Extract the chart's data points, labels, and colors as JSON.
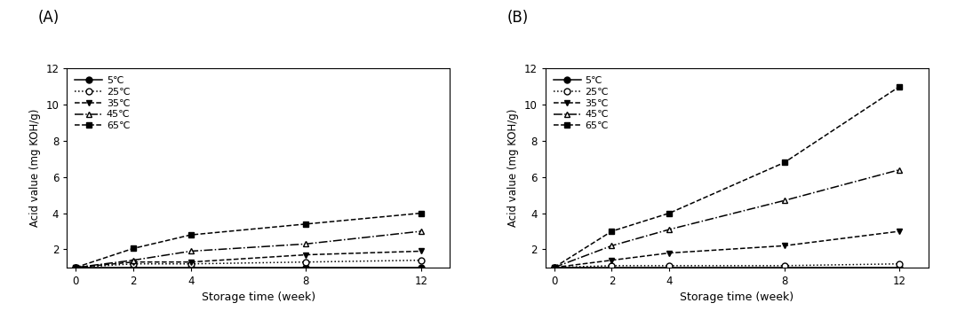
{
  "x": [
    0,
    2,
    4,
    8,
    12
  ],
  "panel_A": {
    "panel_label": "(A)",
    "series": [
      {
        "label": "5℃",
        "values": [
          1.0,
          1.0,
          1.0,
          1.0,
          1.0
        ],
        "linestyle": "-",
        "marker": "o",
        "markerfacecolor": "black",
        "color": "black"
      },
      {
        "label": "25℃",
        "values": [
          1.0,
          1.2,
          1.2,
          1.3,
          1.4
        ],
        "linestyle": ":",
        "marker": "o",
        "markerfacecolor": "white",
        "color": "black"
      },
      {
        "label": "35℃",
        "values": [
          1.0,
          1.3,
          1.3,
          1.7,
          1.9
        ],
        "linestyle": "--",
        "marker": "v",
        "markerfacecolor": "black",
        "color": "black"
      },
      {
        "label": "45℃",
        "values": [
          1.0,
          1.4,
          1.9,
          2.3,
          3.0
        ],
        "linestyle": "-.",
        "marker": "^",
        "markerfacecolor": "white",
        "color": "black"
      },
      {
        "label": "65℃",
        "values": [
          1.0,
          2.05,
          2.8,
          3.4,
          4.0
        ],
        "linestyle": "--",
        "marker": "s",
        "markerfacecolor": "black",
        "color": "black"
      }
    ],
    "ylabel": "Acid value (mg KOH/g)",
    "xlabel": "Storage time (week)",
    "ylim": [
      1,
      12
    ],
    "yticks": [
      2,
      4,
      6,
      8,
      10,
      12
    ],
    "xlim": [
      -0.3,
      13
    ],
    "xticks": [
      0,
      2,
      4,
      8,
      12
    ]
  },
  "panel_B": {
    "panel_label": "(B)",
    "series": [
      {
        "label": "5℃",
        "values": [
          1.0,
          1.0,
          1.0,
          1.0,
          1.0
        ],
        "linestyle": "-",
        "marker": "o",
        "markerfacecolor": "black",
        "color": "black"
      },
      {
        "label": "25℃",
        "values": [
          1.0,
          1.1,
          1.1,
          1.1,
          1.2
        ],
        "linestyle": ":",
        "marker": "o",
        "markerfacecolor": "white",
        "color": "black"
      },
      {
        "label": "35℃",
        "values": [
          1.0,
          1.4,
          1.8,
          2.2,
          3.0
        ],
        "linestyle": "--",
        "marker": "v",
        "markerfacecolor": "black",
        "color": "black"
      },
      {
        "label": "45℃",
        "values": [
          1.0,
          2.2,
          3.1,
          4.7,
          6.4
        ],
        "linestyle": "-.",
        "marker": "^",
        "markerfacecolor": "white",
        "color": "black"
      },
      {
        "label": "65℃",
        "values": [
          1.0,
          3.0,
          4.0,
          6.8,
          11.0
        ],
        "linestyle": "--",
        "marker": "s",
        "markerfacecolor": "black",
        "color": "black"
      }
    ],
    "ylabel": "Acid value (mg KOH/g)",
    "xlabel": "Storage time (week)",
    "ylim": [
      1,
      12
    ],
    "yticks": [
      2,
      4,
      6,
      8,
      10,
      12
    ],
    "xlim": [
      -0.3,
      13
    ],
    "xticks": [
      0,
      2,
      4,
      8,
      12
    ]
  },
  "figsize": [
    10.77,
    3.51
  ],
  "dpi": 100
}
